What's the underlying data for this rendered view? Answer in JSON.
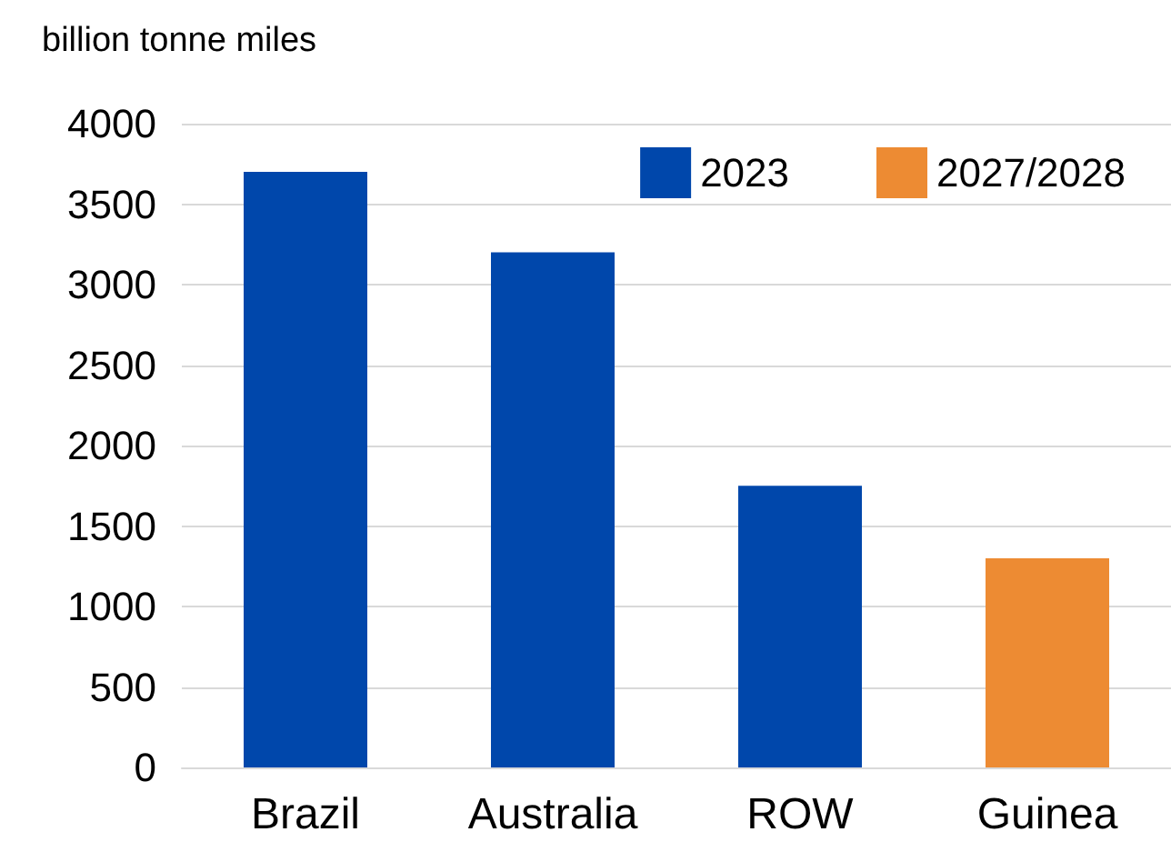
{
  "chart_data": {
    "type": "bar",
    "ylabel": "billion tonne miles",
    "categories": [
      "Brazil",
      "Australia",
      "ROW",
      "Guinea"
    ],
    "series": [
      {
        "name": "2023",
        "color": "#0047ab",
        "values": [
          3700,
          3200,
          1750,
          null
        ]
      },
      {
        "name": "2027/2028",
        "color": "#ed8b33",
        "values": [
          null,
          null,
          null,
          1300
        ]
      }
    ],
    "stacked": true,
    "ylim": [
      0,
      4000
    ],
    "yticks": [
      0,
      500,
      1000,
      1500,
      2000,
      2500,
      3000,
      3500,
      4000
    ],
    "grid": "y",
    "legend": "top right"
  }
}
